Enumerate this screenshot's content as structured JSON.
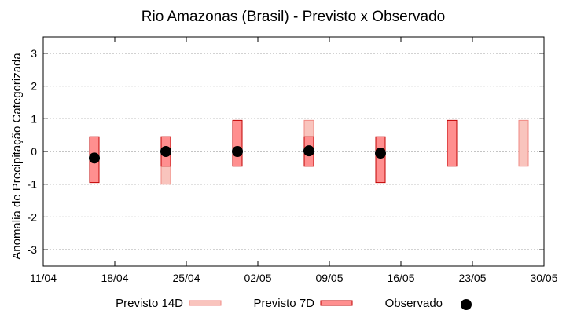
{
  "chart_data": {
    "type": "bar",
    "title": "Rio Amazonas (Brasil) - Previsto x Observado",
    "ylabel": "Anomalia de Precipitação Categorizada",
    "xlabel": "",
    "ylim": [
      -3.5,
      3.5
    ],
    "xlim": [
      "2024-04-11",
      "2024-05-30"
    ],
    "y_ticks": [
      -3,
      -2,
      -1,
      0,
      1,
      2,
      3
    ],
    "y_tick_labels": [
      "-3",
      "-2",
      "-1",
      "0",
      "1",
      "2",
      "3"
    ],
    "x_ticks": [
      "2024-04-11",
      "2024-04-18",
      "2024-04-25",
      "2024-05-02",
      "2024-05-09",
      "2024-05-16",
      "2024-05-23",
      "2024-05-30"
    ],
    "x_tick_labels": [
      "11/04",
      "18/04",
      "25/04",
      "02/05",
      "09/05",
      "16/05",
      "23/05",
      "30/05"
    ],
    "grid": true,
    "legend_position": "bottom",
    "series": [
      {
        "name": "Previsto 14D",
        "color": "#f9c4bd",
        "edge": "#f08a84",
        "type": "range",
        "points": [
          {
            "date": "2024-04-23",
            "low": -1,
            "high": 0.45
          },
          {
            "date": "2024-05-07",
            "low": -0.45,
            "high": 0.95
          },
          {
            "date": "2024-05-28",
            "low": -0.45,
            "high": 0.95
          }
        ]
      },
      {
        "name": "Previsto 7D",
        "color": "#ff8f8f",
        "edge": "#c00000",
        "type": "range",
        "points": [
          {
            "date": "2024-04-16",
            "low": -0.95,
            "high": 0.45
          },
          {
            "date": "2024-04-23",
            "low": -0.45,
            "high": 0.45
          },
          {
            "date": "2024-04-30",
            "low": -0.45,
            "high": 0.95
          },
          {
            "date": "2024-05-07",
            "low": -0.45,
            "high": 0.45
          },
          {
            "date": "2024-05-14",
            "low": -0.95,
            "high": 0.45
          },
          {
            "date": "2024-05-21",
            "low": -0.45,
            "high": 0.95
          }
        ]
      },
      {
        "name": "Observado",
        "color": "#000000",
        "type": "scatter",
        "points": [
          {
            "date": "2024-04-16",
            "value": -0.2
          },
          {
            "date": "2024-04-23",
            "value": 0.0
          },
          {
            "date": "2024-04-30",
            "value": 0.0
          },
          {
            "date": "2024-05-07",
            "value": 0.02
          },
          {
            "date": "2024-05-14",
            "value": -0.05
          }
        ]
      }
    ]
  }
}
